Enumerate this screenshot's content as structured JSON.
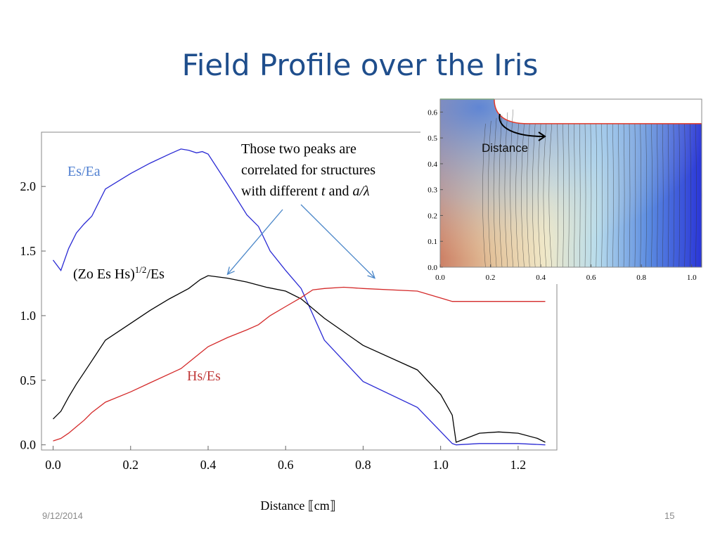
{
  "slide": {
    "title": "Field Profile over the Iris",
    "date": "9/12/2014",
    "page_number": "15"
  },
  "annotation": {
    "line1": "Those two peaks are",
    "line2": "correlated for structures",
    "line3_prefix": "with different ",
    "line3_t": "t",
    "line3_and": " and ",
    "line3_ratio": "a/λ"
  },
  "series_labels": {
    "es_ea": "Es/Ea",
    "combined_main": "(Zo Es Hs)",
    "combined_sup": "1/2",
    "combined_tail": "/Es",
    "hs_es": "Hs/Es"
  },
  "chart_data": [
    {
      "type": "line",
      "xlabel": "Distance ⟦cm⟧",
      "ylabel": "",
      "xlim": [
        -0.03,
        1.3
      ],
      "ylim": [
        -0.04,
        2.42
      ],
      "xticks": [
        "0.0",
        "0.2",
        "0.4",
        "0.6",
        "0.8",
        "1.0",
        "1.2"
      ],
      "yticks": [
        "0.0",
        "0.5",
        "1.0",
        "1.5",
        "2.0"
      ],
      "grid": false,
      "series": [
        {
          "name": "Es/Ea",
          "color": "#2a2ad4",
          "x": [
            0.0,
            0.02,
            0.04,
            0.06,
            0.08,
            0.1,
            0.135,
            0.2,
            0.25,
            0.3,
            0.33,
            0.35,
            0.37,
            0.385,
            0.4,
            0.45,
            0.5,
            0.53,
            0.56,
            0.6,
            0.64,
            0.7,
            0.8,
            0.94,
            1.03,
            1.04,
            1.1,
            1.15,
            1.2,
            1.27
          ],
          "y": [
            1.43,
            1.35,
            1.52,
            1.64,
            1.71,
            1.77,
            1.98,
            2.1,
            2.18,
            2.25,
            2.29,
            2.28,
            2.26,
            2.27,
            2.25,
            2.02,
            1.78,
            1.69,
            1.5,
            1.35,
            1.21,
            0.81,
            0.49,
            0.29,
            0.01,
            0.0,
            0.01,
            0.01,
            0.01,
            0.0
          ]
        },
        {
          "name": "(Zo Es Hs)^1/2/Es",
          "color": "#000000",
          "x": [
            0.0,
            0.02,
            0.04,
            0.06,
            0.08,
            0.1,
            0.135,
            0.2,
            0.25,
            0.3,
            0.35,
            0.38,
            0.4,
            0.45,
            0.5,
            0.55,
            0.6,
            0.64,
            0.7,
            0.8,
            0.94,
            1.0,
            1.03,
            1.04,
            1.1,
            1.15,
            1.2,
            1.25,
            1.27
          ],
          "y": [
            0.2,
            0.26,
            0.37,
            0.47,
            0.56,
            0.65,
            0.81,
            0.94,
            1.04,
            1.13,
            1.21,
            1.28,
            1.31,
            1.29,
            1.26,
            1.22,
            1.19,
            1.13,
            0.98,
            0.77,
            0.58,
            0.39,
            0.23,
            0.02,
            0.09,
            0.1,
            0.09,
            0.05,
            0.02
          ]
        },
        {
          "name": "Hs/Es",
          "color": "#d42a2a",
          "x": [
            0.0,
            0.02,
            0.04,
            0.06,
            0.08,
            0.1,
            0.135,
            0.2,
            0.25,
            0.33,
            0.4,
            0.45,
            0.5,
            0.53,
            0.56,
            0.6,
            0.64,
            0.67,
            0.7,
            0.75,
            0.8,
            0.94,
            1.03,
            1.1,
            1.2,
            1.27
          ],
          "y": [
            0.03,
            0.05,
            0.09,
            0.14,
            0.19,
            0.25,
            0.33,
            0.41,
            0.48,
            0.59,
            0.76,
            0.83,
            0.89,
            0.93,
            1.0,
            1.07,
            1.14,
            1.2,
            1.21,
            1.22,
            1.21,
            1.19,
            1.11,
            1.11,
            1.11,
            1.11
          ]
        }
      ],
      "annotation_arrows_to": [
        {
          "x": 0.45,
          "y": 1.32
        },
        {
          "x": 0.83,
          "y": 1.29
        }
      ]
    },
    {
      "type": "heatmap",
      "xlabel": "",
      "ylabel": "",
      "xlim": [
        0.0,
        1.04
      ],
      "ylim": [
        0.0,
        0.65
      ],
      "xticks": [
        "0.0",
        "0.2",
        "0.4",
        "0.6",
        "0.8",
        "1.0"
      ],
      "yticks": [
        "0.0",
        "0.1",
        "0.2",
        "0.3",
        "0.4",
        "0.5",
        "0.6"
      ],
      "label": "Distance",
      "colormap": [
        "#cc8066",
        "#e3c29a",
        "#f0e8c8",
        "#b8dcec",
        "#5a8ae0",
        "#2a36d8"
      ],
      "boundary_color": "#e23a2a",
      "wall_height": 0.555,
      "iris_center_x": 0.31,
      "iris_radius": 0.095
    }
  ]
}
